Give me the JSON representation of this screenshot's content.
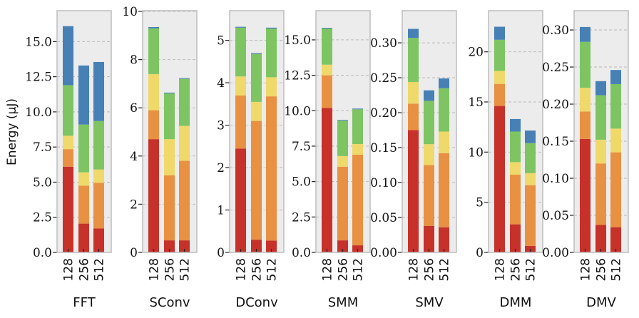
{
  "chart_data": {
    "type": "bar",
    "stacked": true,
    "ylabel": "Energy (μJ)",
    "grid": true,
    "colors": [
      "#c6312a",
      "#e89142",
      "#eed96a",
      "#7ec463",
      "#4680b5"
    ],
    "categories": [
      "128",
      "256",
      "512"
    ],
    "panels": [
      {
        "title": "FFT",
        "ylim": [
          0,
          17.2
        ],
        "yticks": [
          0,
          2.5,
          5,
          7.5,
          10,
          12.5,
          15
        ],
        "ytick_labels": [
          "0.0",
          "2.5",
          "5.0",
          "7.5",
          "10.0",
          "12.5",
          "15.0"
        ],
        "stacks": [
          [
            6.1,
            1.25,
            0.95,
            3.6,
            4.2
          ],
          [
            2.05,
            2.7,
            0.95,
            3.4,
            4.2
          ],
          [
            1.7,
            3.25,
            0.95,
            3.45,
            4.2
          ]
        ]
      },
      {
        "title": "SConv",
        "ylim": [
          0,
          10.03
        ],
        "yticks": [
          0,
          2,
          4,
          6,
          8,
          10
        ],
        "ytick_labels": [
          "0",
          "2",
          "4",
          "6",
          "8",
          "10"
        ],
        "stacks": [
          [
            4.7,
            1.2,
            1.5,
            1.9,
            0.05
          ],
          [
            0.5,
            2.7,
            1.5,
            1.9,
            0.03
          ],
          [
            0.5,
            3.3,
            1.45,
            1.95,
            0.03
          ]
        ]
      },
      {
        "title": "DConv",
        "ylim": [
          0,
          5.7
        ],
        "yticks": [
          0,
          1,
          2,
          3,
          4,
          5
        ],
        "ytick_labels": [
          "0",
          "1",
          "2",
          "3",
          "4",
          "5"
        ],
        "stacks": [
          [
            2.45,
            1.25,
            0.45,
            1.15,
            0.02
          ],
          [
            0.3,
            2.8,
            0.45,
            1.13,
            0.02
          ],
          [
            0.28,
            3.4,
            0.45,
            1.15,
            0.02
          ]
        ]
      },
      {
        "title": "SMM",
        "ylim": [
          0,
          17.06
        ],
        "yticks": [
          0,
          2.5,
          5,
          7.5,
          10,
          12.5,
          15
        ],
        "ytick_labels": [
          "0.0",
          "2.5",
          "5.0",
          "7.5",
          "10.0",
          "12.5",
          "15.0"
        ],
        "stacks": [
          [
            10.2,
            2.3,
            0.75,
            2.55,
            0.05
          ],
          [
            0.85,
            5.2,
            0.75,
            2.5,
            0.05
          ],
          [
            0.5,
            6.4,
            0.75,
            2.45,
            0.05
          ]
        ]
      },
      {
        "title": "SMV",
        "ylim": [
          0,
          0.346
        ],
        "yticks": [
          0,
          0.05,
          0.1,
          0.15,
          0.2,
          0.25,
          0.3
        ],
        "ytick_labels": [
          "0.00",
          "0.05",
          "0.10",
          "0.15",
          "0.20",
          "0.25",
          "0.30"
        ],
        "stacks": [
          [
            0.175,
            0.038,
            0.031,
            0.063,
            0.013
          ],
          [
            0.038,
            0.087,
            0.03,
            0.062,
            0.015
          ],
          [
            0.036,
            0.106,
            0.031,
            0.062,
            0.014
          ]
        ]
      },
      {
        "title": "DMM",
        "ylim": [
          0,
          24.1
        ],
        "yticks": [
          0,
          5,
          10,
          15,
          20
        ],
        "ytick_labels": [
          "0",
          "5",
          "10",
          "15",
          "20"
        ],
        "stacks": [
          [
            14.6,
            2.2,
            1.3,
            3.1,
            1.3
          ],
          [
            2.8,
            4.95,
            1.25,
            3.05,
            1.25
          ],
          [
            0.65,
            6.05,
            1.2,
            3.0,
            1.25
          ]
        ]
      },
      {
        "title": "DMV",
        "ylim": [
          0,
          0.326
        ],
        "yticks": [
          0,
          0.05,
          0.1,
          0.15,
          0.2,
          0.25,
          0.3
        ],
        "ytick_labels": [
          "0.00",
          "0.05",
          "0.10",
          "0.15",
          "0.20",
          "0.25",
          "0.30"
        ],
        "stacks": [
          [
            0.153,
            0.037,
            0.032,
            0.062,
            0.02
          ],
          [
            0.037,
            0.083,
            0.032,
            0.06,
            0.019
          ],
          [
            0.034,
            0.101,
            0.032,
            0.06,
            0.019
          ]
        ]
      }
    ]
  }
}
